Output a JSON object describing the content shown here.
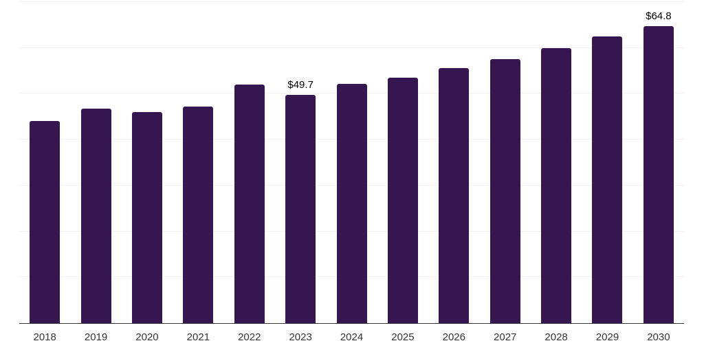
{
  "chart_data": {
    "type": "bar",
    "title": "",
    "xlabel": "",
    "ylabel": "",
    "categories": [
      "2018",
      "2019",
      "2020",
      "2021",
      "2022",
      "2023",
      "2024",
      "2025",
      "2026",
      "2027",
      "2028",
      "2029",
      "2030"
    ],
    "values": [
      44.1,
      46.7,
      46.0,
      47.2,
      52.0,
      49.7,
      52.1,
      53.5,
      55.6,
      57.5,
      60.0,
      62.5,
      64.8
    ],
    "data_labels": [
      {
        "category": "2023",
        "text": "$49.7"
      },
      {
        "category": "2030",
        "text": "$64.8"
      }
    ],
    "ylim": [
      0,
      70
    ],
    "grid": true,
    "grid_step": 10,
    "legend_position": "none",
    "colors": {
      "bar": "#361650",
      "gridline": "#f2f2f5",
      "axis_line": "#37373a",
      "tick_label": "#333333",
      "data_label": "#000000",
      "background": "#ffffff"
    }
  }
}
